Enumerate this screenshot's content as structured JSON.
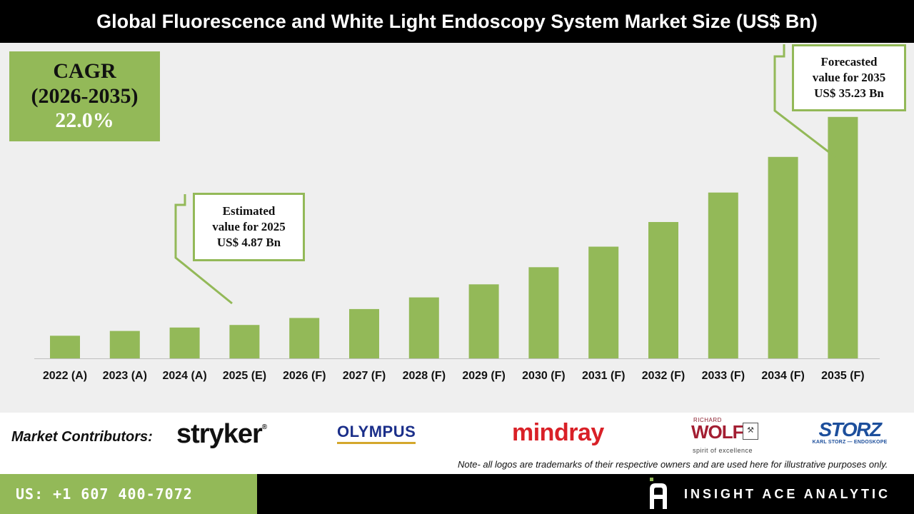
{
  "title": "Global Fluorescence and White Light Endoscopy System Market Size (US$ Bn)",
  "cagr": {
    "line1": "CAGR",
    "line2": "(2026-2035)",
    "value": "22.0%"
  },
  "callouts": {
    "estimated": {
      "line1": "Estimated",
      "line2": "value for 2025",
      "line3": "US$ 4.87 Bn"
    },
    "forecasted": {
      "line1": "Forecasted",
      "line2": "value for 2035",
      "line3": "US$ 35.23 Bn"
    }
  },
  "chart_data": {
    "type": "bar",
    "categories": [
      "2022 (A)",
      "2023 (A)",
      "2024 (A)",
      "2025 (E)",
      "2026 (F)",
      "2027 (F)",
      "2028 (F)",
      "2029 (F)",
      "2030 (F)",
      "2031 (F)",
      "2032 (F)",
      "2033 (F)",
      "2034 (F)",
      "2035 (F)"
    ],
    "values": [
      3.3,
      4.0,
      4.5,
      4.87,
      5.9,
      7.2,
      8.9,
      10.8,
      13.3,
      16.3,
      19.9,
      24.2,
      29.4,
      35.23
    ],
    "title": "Global Fluorescence and White Light Endoscopy System Market Size (US$ Bn)",
    "xlabel": "",
    "ylabel": "",
    "ylim": [
      0,
      37.5
    ],
    "grid": false,
    "bar_color": "#93b958"
  },
  "contributors": {
    "label": "Market Contributors:",
    "logos": {
      "stryker": "stryker",
      "stryker_mark": "®",
      "olympus": "OLYMPUS",
      "mindray": "mindray",
      "wolf_small": "RICHARD",
      "wolf_main": "WOLF",
      "wolf_tagline": "spirit of excellence",
      "storz_main": "STORZ",
      "storz_sub": "KARL STORZ — ENDOSKOPE"
    }
  },
  "note": "Note- all logos are trademarks of their respective owners and are used here for illustrative purposes only.",
  "footer": {
    "phone": "US: +1 607 400-7072",
    "brand": "INSIGHT ACE ANALYTIC"
  },
  "colors": {
    "accent_green": "#93b958",
    "title_bg": "#000000",
    "chart_bg": "#efefef"
  }
}
